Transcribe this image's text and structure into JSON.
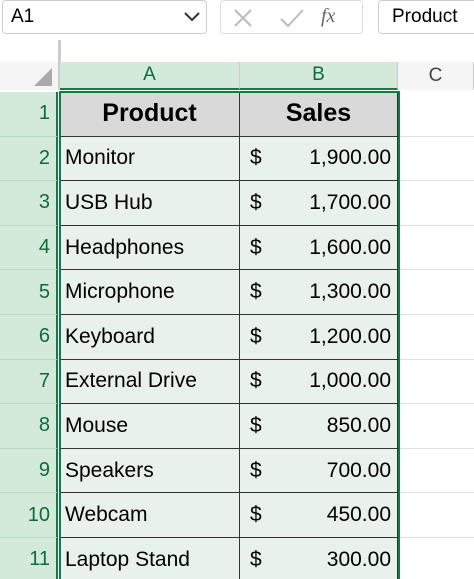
{
  "name_box": "A1",
  "formula_bar": {
    "function_label": "fx",
    "content": "Product"
  },
  "column_headers": [
    "A",
    "B",
    "C"
  ],
  "row_headers": [
    "1",
    "2",
    "3",
    "4",
    "5",
    "6",
    "7",
    "8",
    "9",
    "10",
    "11"
  ],
  "table": {
    "header": [
      "Product",
      "Sales"
    ],
    "rows": [
      [
        "Monitor",
        "$",
        "1,900.00"
      ],
      [
        "USB Hub",
        "$",
        "1,700.00"
      ],
      [
        "Headphones",
        "$",
        "1,600.00"
      ],
      [
        "Microphone",
        "$",
        "1,300.00"
      ],
      [
        "Keyboard",
        "$",
        "1,200.00"
      ],
      [
        "External Drive",
        "$",
        "1,000.00"
      ],
      [
        "Mouse",
        "$",
        "850.00"
      ],
      [
        "Speakers",
        "$",
        "700.00"
      ],
      [
        "Webcam",
        "$",
        "450.00"
      ],
      [
        "Laptop Stand",
        "$",
        "300.00"
      ]
    ]
  }
}
